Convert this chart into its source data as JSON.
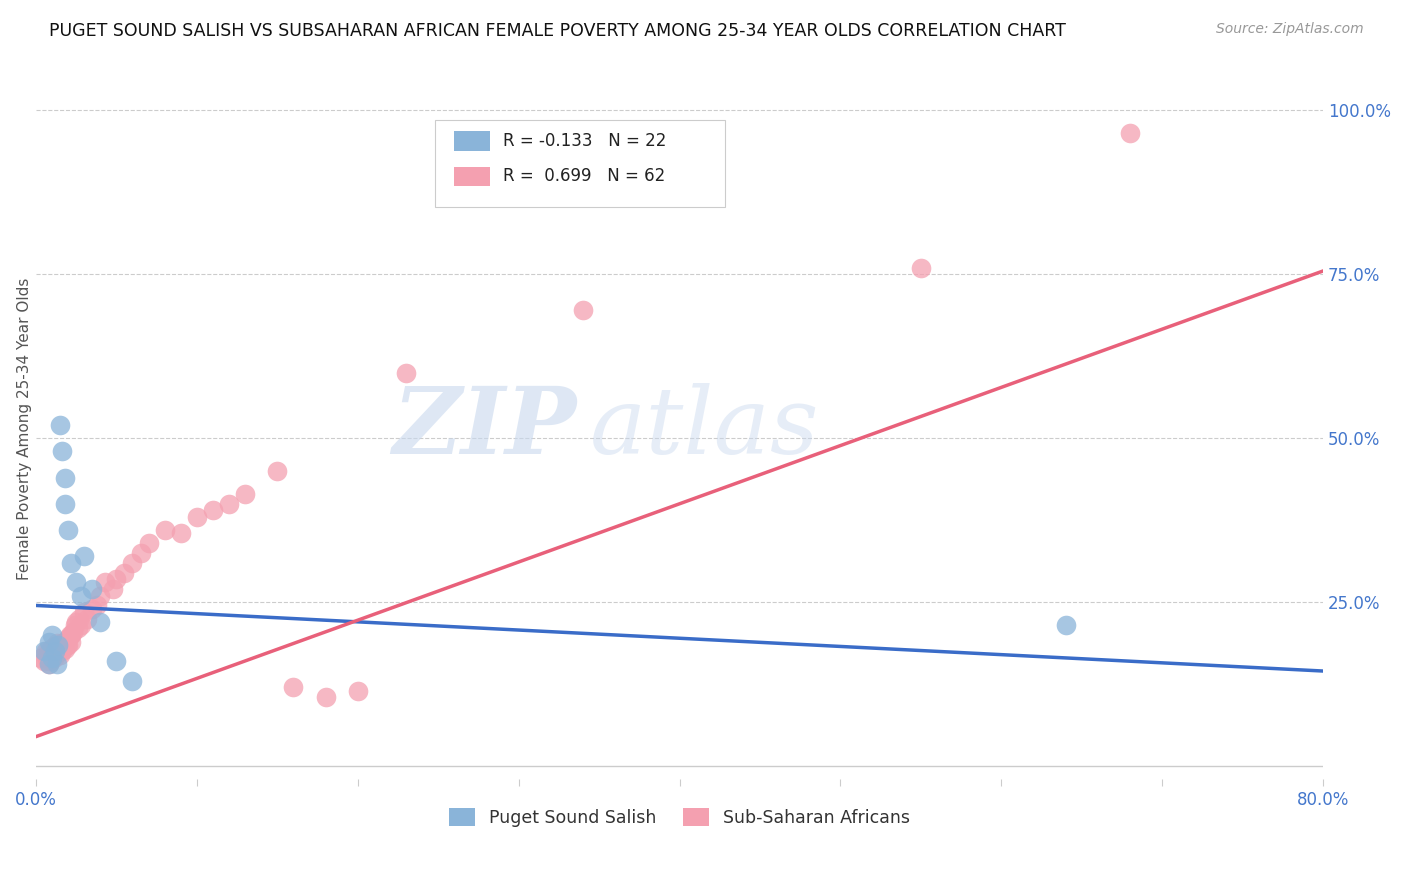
{
  "title": "PUGET SOUND SALISH VS SUBSAHARAN AFRICAN FEMALE POVERTY AMONG 25-34 YEAR OLDS CORRELATION CHART",
  "source": "Source: ZipAtlas.com",
  "ylabel": "Female Poverty Among 25-34 Year Olds",
  "xlim": [
    0.0,
    0.8
  ],
  "ylim": [
    -0.02,
    1.05
  ],
  "plot_ylim": [
    0.0,
    1.0
  ],
  "xticks": [
    0.0,
    0.1,
    0.2,
    0.3,
    0.4,
    0.5,
    0.6,
    0.7,
    0.8
  ],
  "xticklabels": [
    "0.0%",
    "",
    "",
    "",
    "",
    "",
    "",
    "",
    "80.0%"
  ],
  "yticks_right": [
    0.25,
    0.5,
    0.75,
    1.0
  ],
  "ytick_labels_right": [
    "25.0%",
    "50.0%",
    "75.0%",
    "100.0%"
  ],
  "blue_color": "#8ab4d9",
  "pink_color": "#f4a0b0",
  "blue_line_color": "#3a6cc8",
  "pink_line_color": "#e8607a",
  "watermark_zip": "ZIP",
  "watermark_atlas": "atlas",
  "blue_line_x": [
    0.0,
    0.8
  ],
  "blue_line_y": [
    0.245,
    0.145
  ],
  "pink_line_x": [
    0.0,
    0.8
  ],
  "pink_line_y": [
    0.045,
    0.755
  ],
  "blue_scatter_x": [
    0.005,
    0.008,
    0.008,
    0.01,
    0.01,
    0.012,
    0.013,
    0.014,
    0.015,
    0.016,
    0.018,
    0.018,
    0.02,
    0.022,
    0.025,
    0.028,
    0.03,
    0.035,
    0.04,
    0.05,
    0.06,
    0.64
  ],
  "blue_scatter_y": [
    0.175,
    0.155,
    0.19,
    0.165,
    0.2,
    0.175,
    0.155,
    0.185,
    0.52,
    0.48,
    0.44,
    0.4,
    0.36,
    0.31,
    0.28,
    0.26,
    0.32,
    0.27,
    0.22,
    0.16,
    0.13,
    0.215
  ],
  "pink_scatter_x": [
    0.003,
    0.005,
    0.006,
    0.006,
    0.007,
    0.008,
    0.008,
    0.009,
    0.009,
    0.01,
    0.01,
    0.011,
    0.012,
    0.012,
    0.013,
    0.013,
    0.014,
    0.015,
    0.015,
    0.016,
    0.016,
    0.017,
    0.018,
    0.018,
    0.019,
    0.02,
    0.02,
    0.021,
    0.022,
    0.022,
    0.023,
    0.024,
    0.025,
    0.026,
    0.027,
    0.028,
    0.03,
    0.032,
    0.035,
    0.038,
    0.04,
    0.043,
    0.048,
    0.05,
    0.055,
    0.06,
    0.065,
    0.07,
    0.08,
    0.09,
    0.1,
    0.11,
    0.12,
    0.13,
    0.15,
    0.16,
    0.18,
    0.2,
    0.23,
    0.34,
    0.55,
    0.68
  ],
  "pink_scatter_y": [
    0.165,
    0.16,
    0.17,
    0.175,
    0.165,
    0.155,
    0.175,
    0.16,
    0.175,
    0.168,
    0.18,
    0.165,
    0.175,
    0.183,
    0.172,
    0.188,
    0.178,
    0.17,
    0.18,
    0.175,
    0.188,
    0.182,
    0.19,
    0.178,
    0.185,
    0.185,
    0.195,
    0.2,
    0.19,
    0.2,
    0.205,
    0.215,
    0.22,
    0.21,
    0.225,
    0.215,
    0.235,
    0.225,
    0.24,
    0.245,
    0.26,
    0.28,
    0.27,
    0.285,
    0.295,
    0.31,
    0.325,
    0.34,
    0.36,
    0.355,
    0.38,
    0.39,
    0.4,
    0.415,
    0.45,
    0.12,
    0.105,
    0.115,
    0.6,
    0.695,
    0.76,
    0.965
  ]
}
